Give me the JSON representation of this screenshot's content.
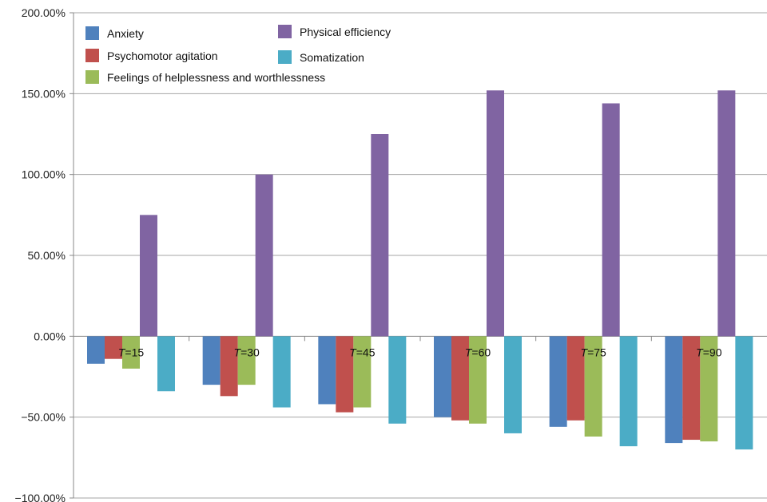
{
  "chart_data": {
    "type": "bar",
    "categories": [
      {
        "var": "T",
        "label": "=15"
      },
      {
        "var": "T",
        "label": "=30"
      },
      {
        "var": "T",
        "label": "=45"
      },
      {
        "var": "T",
        "label": "=60"
      },
      {
        "var": "T",
        "label": "=75"
      },
      {
        "var": "T",
        "label": "=90"
      }
    ],
    "series": [
      {
        "name": "Anxiety",
        "color": "#4f81bd",
        "values": [
          -17,
          -30,
          -42,
          -50,
          -56,
          -66
        ]
      },
      {
        "name": "Psychomotor agitation",
        "color": "#c0504d",
        "values": [
          -14,
          -37,
          -47,
          -52,
          -52,
          -64
        ]
      },
      {
        "name": "Feelings of helplessness and worthlessness",
        "color": "#9bbb59",
        "values": [
          -20,
          -30,
          -44,
          -54,
          -62,
          -65
        ]
      },
      {
        "name": "Physical efficiency",
        "color": "#8064a2",
        "values": [
          75,
          100,
          125,
          152,
          144,
          152
        ]
      },
      {
        "name": "Somatization",
        "color": "#4bacc6",
        "values": [
          -34,
          -44,
          -54,
          -60,
          -68,
          -70
        ]
      }
    ],
    "ylim": [
      -100,
      200
    ],
    "yticks": [
      "200.00%",
      "150.00%",
      "100.00%",
      "50.00%",
      "0.00%",
      "−50.00%",
      "−100.00%"
    ],
    "ytick_values": [
      200,
      150,
      100,
      50,
      0,
      -50,
      -100
    ],
    "legend_order": [
      0,
      3,
      1,
      4,
      2
    ],
    "legend_placement": "top-left",
    "grid": true
  }
}
